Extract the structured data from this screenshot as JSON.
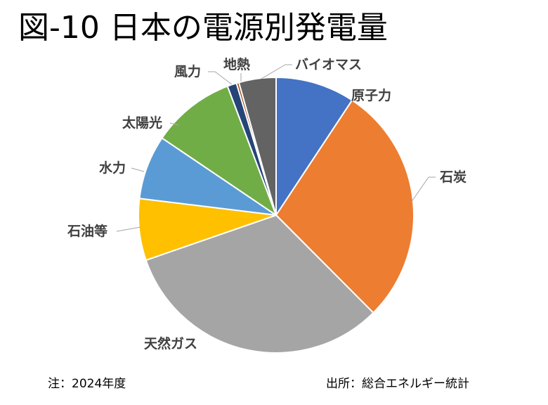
{
  "title": "図-10 日本の電源別発電量",
  "note": "注：2024年度",
  "source": "出所：総合エネルギー統計",
  "chart_data": {
    "type": "pie",
    "title": "図-10 日本の電源別発電量",
    "start": "12 o'clock, clockwise",
    "slices": [
      {
        "label": "原子力",
        "value": 9.4,
        "color": "#4472C4"
      },
      {
        "label": "石炭",
        "value": 28.5,
        "color": "#ED7D31"
      },
      {
        "label": "天然ガス",
        "value": 32.5,
        "color": "#A5A5A5"
      },
      {
        "label": "石油等",
        "value": 7.3,
        "color": "#FFC000"
      },
      {
        "label": "水力",
        "value": 7.6,
        "color": "#5B9BD5"
      },
      {
        "label": "太陽光",
        "value": 9.9,
        "color": "#70AD47"
      },
      {
        "label": "風力",
        "value": 1.1,
        "color": "#264478"
      },
      {
        "label": "地熱",
        "value": 0.3,
        "color": "#9E480E"
      },
      {
        "label": "バイオマス",
        "value": 4.4,
        "color": "#636363"
      }
    ]
  }
}
